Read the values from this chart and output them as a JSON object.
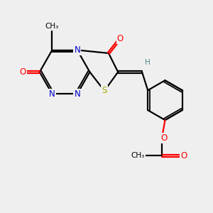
{
  "bg_color": "#efefef",
  "atom_colors": {
    "C": "#000000",
    "N": "#0000cc",
    "O": "#ff0000",
    "S": "#aaaa00",
    "H": "#4a8888"
  },
  "bond_color": "#000000",
  "figsize": [
    3.0,
    3.0
  ],
  "dpi": 100
}
